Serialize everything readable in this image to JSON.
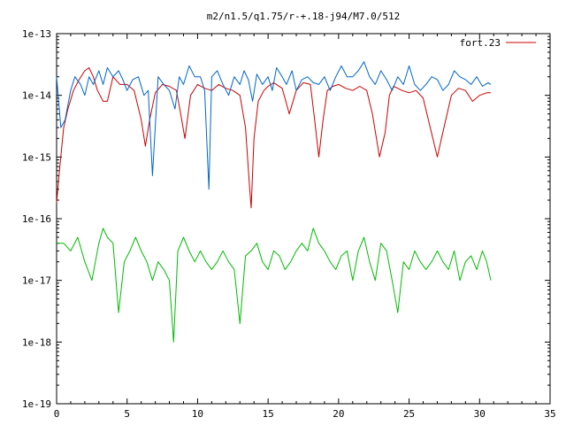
{
  "chart_data": {
    "type": "line",
    "title": "m2/n1.5/q1.75/r-+.18-j94/M7.0/512",
    "xlabel": "",
    "ylabel": "",
    "xlim": [
      0,
      35
    ],
    "ylim": [
      1e-19,
      1e-13
    ],
    "yscale": "log",
    "grid": false,
    "legend_position": "top-right",
    "x_ticks": [
      {
        "value": 0,
        "label": "0"
      },
      {
        "value": 5,
        "label": "5"
      },
      {
        "value": 10,
        "label": "10"
      },
      {
        "value": 15,
        "label": "15"
      },
      {
        "value": 20,
        "label": "20"
      },
      {
        "value": 25,
        "label": "25"
      },
      {
        "value": 30,
        "label": "30"
      },
      {
        "value": 35,
        "label": "35"
      }
    ],
    "y_ticks": [
      {
        "value": 1e-13,
        "label": "1e-13"
      },
      {
        "value": 1e-14,
        "label": "1e-14"
      },
      {
        "value": 1e-15,
        "label": "1e-15"
      },
      {
        "value": 1e-16,
        "label": "1e-16"
      },
      {
        "value": 1e-17,
        "label": "1e-17"
      },
      {
        "value": 1e-18,
        "label": "1e-18"
      },
      {
        "value": 1e-19,
        "label": "1e-19"
      }
    ],
    "series": [
      {
        "name": "fort.23",
        "color": "#cc0000",
        "x": [
          0.0,
          0.2,
          0.5,
          0.8,
          1.2,
          1.6,
          2.0,
          2.3,
          2.6,
          2.9,
          3.3,
          3.6,
          4.0,
          4.5,
          5.0,
          5.5,
          6.0,
          6.3,
          6.6,
          7.0,
          7.5,
          8.0,
          8.5,
          8.8,
          9.1,
          9.5,
          10.0,
          10.5,
          11.0,
          11.5,
          12.0,
          12.5,
          13.0,
          13.4,
          13.7,
          13.8,
          14.0,
          14.3,
          14.7,
          15.0,
          15.4,
          16.0,
          16.5,
          17.0,
          17.5,
          18.0,
          18.3,
          18.6,
          18.9,
          19.2,
          19.6,
          20.0,
          20.5,
          21.0,
          21.5,
          22.0,
          22.4,
          22.9,
          23.3,
          23.6,
          23.9,
          24.2,
          24.5,
          25.0,
          25.5,
          26.0,
          26.5,
          27.0,
          27.3,
          27.6,
          28.0,
          28.5,
          29.0,
          29.5,
          30.0,
          30.5,
          30.8
        ],
        "values": [
          1.8e-16,
          6e-16,
          3e-15,
          6e-15,
          1.2e-14,
          1.8e-14,
          2.5e-14,
          2.8e-14,
          2e-14,
          1.2e-14,
          8e-15,
          8e-15,
          2e-14,
          1.5e-14,
          1.5e-14,
          1.2e-14,
          4e-15,
          1.5e-15,
          4e-15,
          1.1e-14,
          1.5e-14,
          1.4e-14,
          1.2e-14,
          5e-15,
          2e-15,
          1e-14,
          1.5e-14,
          1.3e-14,
          1.2e-14,
          1.5e-14,
          1.3e-14,
          1.2e-14,
          1e-14,
          3e-15,
          3e-16,
          1.5e-16,
          2e-15,
          8e-15,
          1.2e-14,
          1.4e-14,
          1.6e-14,
          1.3e-14,
          5e-15,
          1.2e-14,
          1.6e-14,
          1.5e-14,
          4e-15,
          1e-15,
          4e-15,
          1.2e-14,
          1.4e-14,
          1.5e-14,
          1.3e-14,
          1.2e-14,
          1.4e-14,
          1.2e-14,
          5e-15,
          1e-15,
          2.5e-15,
          1e-14,
          1.4e-14,
          1.3e-14,
          1.2e-14,
          1.1e-14,
          1.2e-14,
          9e-15,
          3e-15,
          1e-15,
          2e-15,
          4e-15,
          1e-14,
          1.3e-14,
          1.2e-14,
          8e-15,
          1e-14,
          1.1e-14,
          1.1e-14
        ]
      },
      {
        "color": "#0066cc",
        "x": [
          0.0,
          0.3,
          0.6,
          1.0,
          1.3,
          1.7,
          2.0,
          2.3,
          2.6,
          3.0,
          3.3,
          3.6,
          4.0,
          4.4,
          4.7,
          5.0,
          5.4,
          5.8,
          6.2,
          6.5,
          6.8,
          7.2,
          7.6,
          8.0,
          8.4,
          8.7,
          9.0,
          9.4,
          9.8,
          10.2,
          10.5,
          10.8,
          11.0,
          11.4,
          11.8,
          12.2,
          12.6,
          13.0,
          13.3,
          13.6,
          13.9,
          14.2,
          14.6,
          15.0,
          15.3,
          15.6,
          16.0,
          16.3,
          16.7,
          17.0,
          17.4,
          17.8,
          18.2,
          18.6,
          19.0,
          19.4,
          19.8,
          20.2,
          20.6,
          21.0,
          21.4,
          21.8,
          22.2,
          22.6,
          23.0,
          23.4,
          23.8,
          24.2,
          24.6,
          25.0,
          25.4,
          25.8,
          26.2,
          26.6,
          27.0,
          27.4,
          27.8,
          28.2,
          28.6,
          29.0,
          29.4,
          29.8,
          30.2,
          30.6,
          30.8
        ],
        "values": [
          2e-14,
          3e-15,
          4e-15,
          1.2e-14,
          2e-14,
          1.5e-14,
          1e-14,
          2e-14,
          1.5e-14,
          2.5e-14,
          1.5e-14,
          2.8e-14,
          2e-14,
          2.5e-14,
          1.8e-14,
          1.2e-14,
          1.8e-14,
          2e-14,
          1e-14,
          1.2e-14,
          5e-16,
          2e-14,
          1.5e-14,
          1.2e-14,
          6e-15,
          2e-14,
          1.5e-14,
          3e-14,
          2e-14,
          2e-14,
          1.2e-14,
          3e-16,
          2e-14,
          2.5e-14,
          1.5e-14,
          1e-14,
          2e-14,
          1.5e-14,
          2.5e-14,
          1.8e-14,
          8e-15,
          2.2e-14,
          1.5e-14,
          2e-14,
          1.2e-14,
          2.8e-14,
          2e-14,
          1.5e-14,
          2.5e-14,
          1.2e-14,
          1.8e-14,
          2e-14,
          1.6e-14,
          1.5e-14,
          2e-14,
          1.2e-14,
          2e-14,
          3e-14,
          2e-14,
          2e-14,
          2.5e-14,
          3.5e-14,
          2e-14,
          1.5e-14,
          2.5e-14,
          1.8e-14,
          1.2e-14,
          2e-14,
          1.5e-14,
          3e-14,
          1.5e-14,
          1.2e-14,
          1.5e-14,
          2e-14,
          1.8e-14,
          1.2e-14,
          1.5e-14,
          2.5e-14,
          2e-14,
          1.8e-14,
          1.5e-14,
          2e-14,
          1.4e-14,
          1.6e-14,
          1.5e-14
        ]
      },
      {
        "color": "#00bb00",
        "x": [
          0.0,
          0.5,
          1.0,
          1.5,
          2.0,
          2.5,
          3.0,
          3.3,
          3.6,
          4.0,
          4.4,
          4.8,
          5.2,
          5.6,
          6.0,
          6.4,
          6.8,
          7.2,
          7.6,
          8.0,
          8.3,
          8.6,
          9.0,
          9.4,
          9.8,
          10.2,
          10.6,
          11.0,
          11.4,
          11.8,
          12.2,
          12.6,
          13.0,
          13.4,
          13.8,
          14.2,
          14.6,
          15.0,
          15.4,
          15.8,
          16.2,
          16.6,
          17.0,
          17.4,
          17.8,
          18.2,
          18.6,
          19.0,
          19.4,
          19.8,
          20.2,
          20.6,
          21.0,
          21.4,
          21.8,
          22.2,
          22.6,
          23.0,
          23.4,
          23.8,
          24.2,
          24.6,
          25.0,
          25.4,
          25.8,
          26.2,
          26.6,
          27.0,
          27.4,
          27.8,
          28.2,
          28.6,
          29.0,
          29.4,
          29.8,
          30.2,
          30.5,
          30.8
        ],
        "values": [
          4e-17,
          4e-17,
          3e-17,
          5e-17,
          2e-17,
          1e-17,
          4e-17,
          7e-17,
          5e-17,
          4e-17,
          3e-18,
          2e-17,
          3e-17,
          5e-17,
          3e-17,
          2e-17,
          1e-17,
          2e-17,
          1.5e-17,
          1e-17,
          1e-18,
          3e-17,
          5e-17,
          3e-17,
          2e-17,
          3e-17,
          2e-17,
          1.5e-17,
          2e-17,
          3e-17,
          2e-17,
          1.5e-17,
          2e-18,
          2.5e-17,
          3e-17,
          4e-17,
          2e-17,
          1.5e-17,
          3e-17,
          2.5e-17,
          1.5e-17,
          2e-17,
          3e-17,
          4e-17,
          3e-17,
          7e-17,
          4e-17,
          3e-17,
          2e-17,
          1.5e-17,
          2.5e-17,
          3e-17,
          1e-17,
          3e-17,
          5e-17,
          2e-17,
          1e-17,
          4e-17,
          3e-17,
          1e-17,
          3e-18,
          2e-17,
          1.5e-17,
          3e-17,
          2e-17,
          1.5e-17,
          2e-17,
          3e-17,
          2e-17,
          1.5e-17,
          3e-17,
          1e-17,
          2e-17,
          2.5e-17,
          1.5e-17,
          3e-17,
          2e-17,
          1e-17
        ]
      }
    ]
  }
}
